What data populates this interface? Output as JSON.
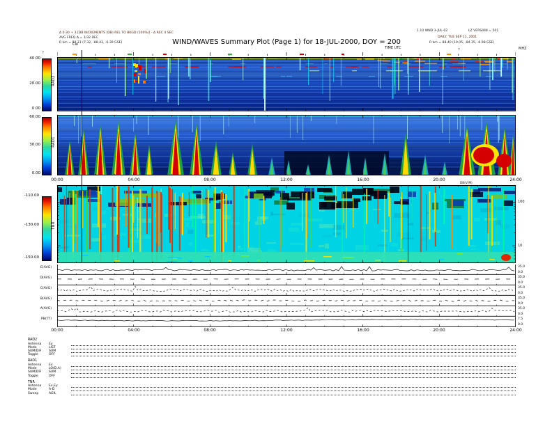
{
  "header": {
    "title": "WIND/WAVES Summary Plot (Page 1) for 18-JUL-2000, DOY = 200",
    "left_line1": "Δ 0.30 + 3 [DB INCREMENTS (DB) REL TO BKGD (100%)] - Δ REC 4 SEC",
    "left_line2": "AVG FREQ Δ = 1/32 DEC",
    "left_line3": "R km =  88.11 (7.32, -88.43, -6.39 GSE)",
    "right_line1": "1.10 WND 3-JUL-02",
    "right_version": "LZ VERSION = 501",
    "right_line2": "DAILY: TUE SEP 11, 2001",
    "right_line3": "R km =  88.40 (10.05, -84.35, -6.98 GSE)",
    "time_axis_label": "TIME UTC",
    "cal_label": "Cal",
    "unit_top_right": "MHZ",
    "marker_left": "▽",
    "marker_right": "▽"
  },
  "colorbars": {
    "rad2": {
      "name": "RAD2",
      "ticks": [
        "40.00",
        "20.00",
        "0.00"
      ]
    },
    "rad1": {
      "name": "RAD1",
      "ticks": [
        "60.00",
        "30.00",
        "0.00"
      ]
    },
    "tnr": {
      "name": "TNR",
      "ticks": [
        "-110.00",
        "-130.00",
        "-150.00"
      ]
    }
  },
  "axes": {
    "time_ticks": [
      "00:00",
      "04:00",
      "08:00",
      "12:00",
      "16:00",
      "20:00",
      "24:00"
    ],
    "note": "DB(V/M)",
    "tnr_right": [
      "100",
      "10"
    ]
  },
  "strips": {
    "items": [
      {
        "label": "E(AVG)",
        "max": "35.0",
        "min": "0.0"
      },
      {
        "label": "D(AVG)",
        "max": "35.0",
        "min": "0.0"
      },
      {
        "label": "C(AVG)",
        "max": "35.0",
        "min": "0.0"
      },
      {
        "label": "B(AVG)",
        "max": "35.0",
        "min": "0.0"
      },
      {
        "label": "A(AVG)",
        "max": "35.0",
        "min": "0.0"
      },
      {
        "label": "PB(TT)",
        "max": "7.5",
        "min": "0.0"
      }
    ]
  },
  "footer": {
    "groups": [
      {
        "name": "RAD2",
        "rows": [
          [
            "Antenna",
            "Ey"
          ],
          [
            "Mode",
            "LIST"
          ],
          [
            "SUM/DIF",
            "SUM"
          ],
          [
            "Toggle",
            "OFF"
          ]
        ]
      },
      {
        "name": "RAD1",
        "rows": [
          [
            "Antenna",
            "Ex"
          ],
          [
            "Mode",
            "LO(D,A)"
          ],
          [
            "SUM/DIF",
            "SUM"
          ],
          [
            "Toggle",
            "OFF"
          ]
        ]
      },
      {
        "name": "TNR",
        "rows": [
          [
            "Antenna",
            "Ex,Ey"
          ],
          [
            "Mode",
            "A-D"
          ],
          [
            "Sweep",
            "AGIL"
          ]
        ]
      }
    ]
  },
  "chart_data": [
    {
      "type": "heatmap",
      "title": "RAD2 receiver dynamic spectrum, 18-JUL-2000 (DOY 200)",
      "xlabel": "TIME UTC",
      "x_ticks": [
        "00:00",
        "04:00",
        "08:00",
        "12:00",
        "16:00",
        "20:00",
        "24:00"
      ],
      "y_unit": "MHZ",
      "colorbar_label_ticks": [
        40.0,
        20.0,
        0.0
      ],
      "colorbar_range": [
        0,
        40
      ],
      "palette": "blue-cyan-green-yellow-red rainbow",
      "features": "mostly blue background with horizontal interference bands (red/green/yellow dashes) and many narrow vertical type-III solar radio burst streaks; olive band along top edge; black calibration line near 01:20"
    },
    {
      "type": "heatmap",
      "title": "RAD1 receiver dynamic spectrum",
      "xlabel": "TIME UTC",
      "x_ticks": [
        "00:00",
        "04:00",
        "08:00",
        "12:00",
        "16:00",
        "20:00",
        "24:00"
      ],
      "colorbar_label_ticks": [
        60.0,
        30.0,
        0.0
      ],
      "colorbar_range": [
        0,
        60
      ],
      "palette": "blue-cyan-green-yellow-red rainbow",
      "burst_times_hours": [
        0.7,
        1.4,
        2.2,
        3.2,
        4.1,
        4.8,
        6.2,
        7.3,
        8.3,
        9.2,
        10.2,
        11.2,
        12.1,
        13.1,
        14.3,
        15.2,
        16.1,
        17.2,
        18.2,
        20.4,
        21.5,
        22.5,
        23.4,
        23.9
      ],
      "features": "intense red/yellow flame-shaped bursts rising from low frequencies, strongest 00-03 UT and 21-23 UT; dark quiet region 12-17 UT near bottom"
    },
    {
      "type": "heatmap",
      "title": "TNR thermal noise receiver dynamic spectrum",
      "xlabel": "TIME UTC",
      "x_ticks": [
        "00:00",
        "04:00",
        "08:00",
        "12:00",
        "16:00",
        "20:00",
        "24:00"
      ],
      "y_axis_right_ticks_kHz": [
        100,
        10
      ],
      "y_scale": "log",
      "colorbar_label_ticks": [
        -110.0,
        -130.0,
        -150.0
      ],
      "colorbar_range": [
        -150,
        -110
      ],
      "palette": "blue-cyan-green-yellow-red rainbow",
      "features": "cyan background (plasma line) with dense vertical yellow/red spike columns throughout the day; dark blue/black patches at high frequencies, densest 12-17 UT; bright green-cyan band along bottom"
    },
    {
      "type": "line",
      "title": "Band-average strip charts",
      "series": [
        {
          "name": "E(AVG)",
          "y_range": [
            0,
            35
          ],
          "shape": "low flat trace with small bumps"
        },
        {
          "name": "D(AVG)",
          "y_range": [
            0,
            35
          ],
          "shape": "dashed near-constant mid-level trace"
        },
        {
          "name": "C(AVG)",
          "y_range": [
            0,
            35
          ],
          "shape": "noisy dotted trace"
        },
        {
          "name": "B(AVG)",
          "y_range": [
            0,
            35
          ],
          "shape": "noisy dashed trace"
        },
        {
          "name": "A(AVG)",
          "y_range": [
            0,
            35
          ],
          "shape": "noisy dotted trace with mid-day dip"
        },
        {
          "name": "PB(TT)",
          "y_range": [
            0,
            7.5
          ],
          "shape": "smooth nearly flat trace"
        }
      ],
      "x_ticks": [
        "00:00",
        "04:00",
        "08:00",
        "12:00",
        "16:00",
        "20:00",
        "24:00"
      ]
    }
  ]
}
